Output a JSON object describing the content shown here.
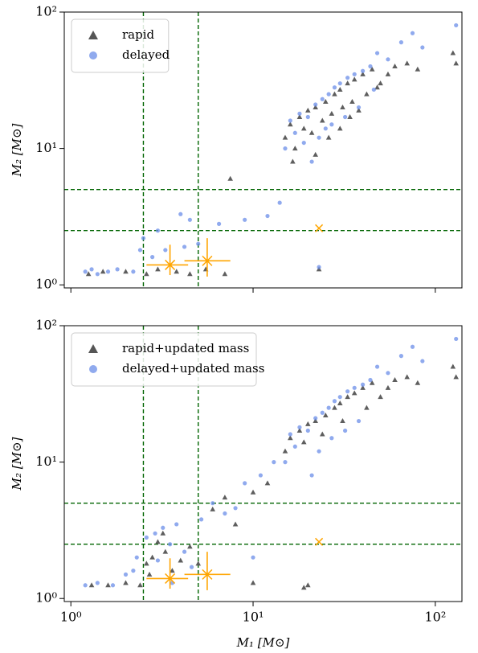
{
  "chart_data": [
    {
      "type": "scatter",
      "xscale": "log",
      "yscale": "log",
      "legend": "upper left",
      "ylabel": "M₂ [M⊙]",
      "xlim": [
        0.92,
        140
      ],
      "ylim": [
        0.95,
        100
      ],
      "xticks": [
        1,
        10,
        100
      ],
      "yticks": [
        {
          "value": 1,
          "label": "10⁰"
        },
        {
          "value": 10,
          "label": "10¹"
        },
        {
          "value": 100,
          "label": "10²"
        }
      ],
      "reference_lines": {
        "color": "#006400",
        "x": [
          2.5,
          5
        ],
        "y": [
          2.5,
          5
        ]
      },
      "observed": {
        "color": "#ffa500",
        "points": [
          {
            "x": 3.5,
            "xlow": 2.6,
            "xhigh": 4.4,
            "y": 1.4,
            "ylow": 1.18,
            "yhigh": 1.97
          },
          {
            "x": 5.6,
            "xlow": 4.2,
            "xhigh": 7.5,
            "y": 1.5,
            "ylow": 1.15,
            "yhigh": 2.2
          },
          {
            "x": 23,
            "y": 2.6
          }
        ]
      },
      "series": [
        {
          "name": "rapid",
          "color": "#555555",
          "marker": "triangle",
          "x": [
            1.25,
            1.5,
            2.0,
            2.6,
            3.0,
            3.8,
            4.5,
            5.5,
            7.5,
            16,
            18,
            20,
            22,
            25,
            28,
            30,
            33,
            36,
            40,
            45,
            50,
            55,
            60,
            70,
            80,
            15,
            17,
            19,
            21,
            24,
            27,
            31,
            35,
            42,
            48,
            16.5,
            22,
            26,
            30,
            130,
            125,
            7.0,
            23,
            34,
            38
          ],
          "values": [
            1.2,
            1.25,
            1.25,
            1.2,
            1.3,
            1.25,
            1.2,
            1.3,
            6.0,
            15,
            17,
            19,
            20,
            22,
            25,
            27,
            30,
            32,
            35,
            38,
            30,
            35,
            40,
            42,
            38,
            12,
            10,
            14,
            13,
            16,
            18,
            20,
            22,
            25,
            28,
            8,
            9,
            12,
            14,
            42,
            50,
            1.2,
            1.3,
            17,
            19
          ]
        },
        {
          "name": "delayed",
          "color": "#6b8de8",
          "marker": "circle",
          "x": [
            1.2,
            1.3,
            1.4,
            1.6,
            1.8,
            2.2,
            2.5,
            2.8,
            3.3,
            4.0,
            4.5,
            5.0,
            9,
            12,
            16,
            18,
            20,
            22,
            24,
            26,
            28,
            30,
            33,
            36,
            40,
            44,
            48,
            55,
            65,
            75,
            85,
            130,
            17,
            19,
            23,
            27,
            32,
            38,
            46,
            15,
            21,
            25,
            2.4,
            3.0,
            4.2,
            14,
            23,
            6.5
          ],
          "values": [
            1.25,
            1.3,
            1.2,
            1.25,
            1.3,
            1.25,
            2.2,
            1.6,
            1.8,
            3.3,
            3.0,
            2.0,
            3.0,
            3.2,
            16,
            18,
            17,
            21,
            23,
            25,
            28,
            30,
            33,
            35,
            37,
            40,
            50,
            45,
            60,
            70,
            55,
            80,
            13,
            11,
            12,
            15,
            17,
            20,
            27,
            10,
            8,
            14,
            1.8,
            2.5,
            1.9,
            4.0,
            1.35,
            2.8
          ]
        }
      ]
    },
    {
      "type": "scatter",
      "xscale": "log",
      "yscale": "log",
      "legend": "upper left",
      "xlabel": "M₁ [M⊙]",
      "ylabel": "M₂ [M⊙]",
      "xlim": [
        0.92,
        140
      ],
      "ylim": [
        0.95,
        100
      ],
      "xticks": [
        {
          "value": 1,
          "label": "10⁰"
        },
        {
          "value": 10,
          "label": "10¹"
        },
        {
          "value": 100,
          "label": "10²"
        }
      ],
      "yticks": [
        {
          "value": 1,
          "label": "10⁰"
        },
        {
          "value": 10,
          "label": "10¹"
        },
        {
          "value": 100,
          "label": "10²"
        }
      ],
      "reference_lines": {
        "color": "#006400",
        "x": [
          2.5,
          5
        ],
        "y": [
          2.5,
          5
        ]
      },
      "observed": {
        "color": "#ffa500",
        "points": [
          {
            "x": 3.5,
            "xlow": 2.6,
            "xhigh": 4.4,
            "y": 1.4,
            "ylow": 1.18,
            "yhigh": 1.97
          },
          {
            "x": 5.6,
            "xlow": 4.2,
            "xhigh": 7.5,
            "y": 1.5,
            "ylow": 1.15,
            "yhigh": 2.2
          },
          {
            "x": 23,
            "y": 2.6
          }
        ]
      },
      "series": [
        {
          "name": "rapid+updated mass",
          "color": "#555555",
          "marker": "triangle",
          "x": [
            1.3,
            1.6,
            2.0,
            2.4,
            2.6,
            2.8,
            3.0,
            3.3,
            3.6,
            4.0,
            4.5,
            5.0,
            6.0,
            7.0,
            8.0,
            10,
            12,
            16,
            18,
            20,
            22,
            25,
            28,
            30,
            33,
            36,
            40,
            45,
            50,
            55,
            60,
            70,
            80,
            15,
            19,
            24,
            31,
            42,
            130,
            125,
            19,
            20,
            3.2,
            2.7,
            10
          ],
          "values": [
            1.25,
            1.25,
            1.3,
            1.25,
            1.8,
            2.0,
            2.6,
            2.2,
            1.6,
            1.9,
            2.4,
            1.8,
            4.5,
            5.5,
            3.5,
            6,
            7,
            15,
            17,
            19,
            20,
            22,
            25,
            27,
            30,
            32,
            35,
            38,
            30,
            35,
            40,
            42,
            38,
            12,
            14,
            16,
            20,
            25,
            42,
            50,
            1.2,
            1.25,
            3.0,
            1.5,
            1.3
          ]
        },
        {
          "name": "delayed+updated mass",
          "color": "#6b8de8",
          "marker": "circle",
          "x": [
            1.2,
            1.4,
            1.7,
            2.0,
            2.3,
            2.6,
            2.9,
            3.2,
            3.5,
            3.8,
            4.2,
            4.6,
            5.2,
            6,
            7,
            8,
            9,
            11,
            13,
            16,
            18,
            20,
            22,
            24,
            26,
            28,
            30,
            33,
            36,
            40,
            44,
            48,
            55,
            65,
            75,
            85,
            130,
            17,
            23,
            27,
            32,
            38,
            15,
            21,
            2.2,
            3.0,
            3.6,
            10
          ],
          "values": [
            1.25,
            1.3,
            1.25,
            1.5,
            2.0,
            2.8,
            3.0,
            3.3,
            2.5,
            3.5,
            2.2,
            1.7,
            3.8,
            5,
            4.2,
            4.6,
            7,
            8,
            10,
            16,
            18,
            17,
            21,
            23,
            25,
            28,
            30,
            33,
            35,
            37,
            40,
            50,
            45,
            60,
            70,
            55,
            80,
            13,
            12,
            15,
            17,
            20,
            10,
            8,
            1.6,
            1.9,
            1.3,
            2.0
          ]
        }
      ]
    }
  ]
}
